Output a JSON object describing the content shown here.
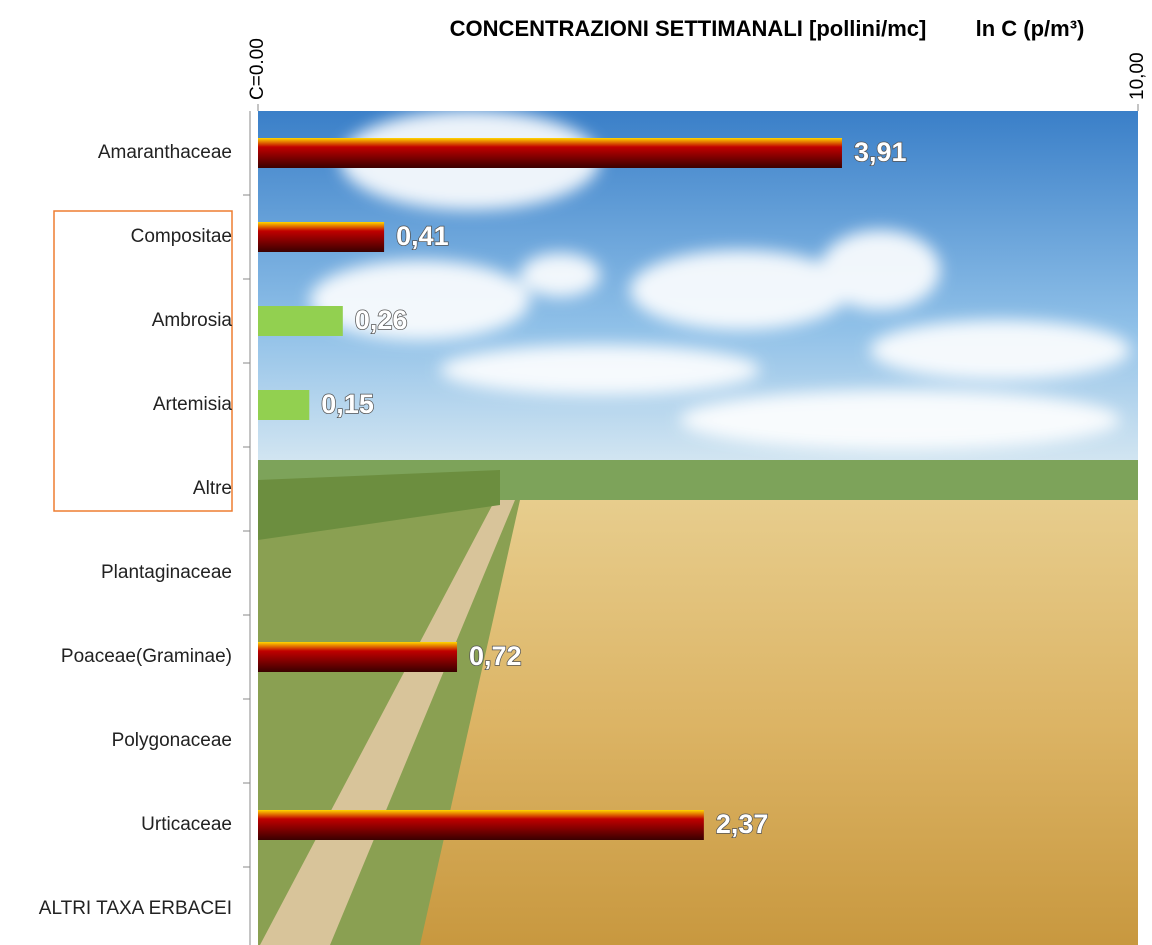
{
  "chart_data": {
    "type": "hbar",
    "title": "CONCENTRAZIONI SETTIMANALI  [pollini/mc]",
    "x_label": "ln C (p/m³)",
    "categories": [
      "Amaranthaceae",
      "Compositae",
      "Ambrosia",
      "Artemisia",
      "Altre",
      "Plantaginaceae",
      "Poaceae(Graminae)",
      "Polygonaceae",
      "Urticaceae",
      "ALTRI TAXA ERBACEI"
    ],
    "values": [
      3.91,
      0.41,
      0.26,
      0.15,
      null,
      null,
      0.72,
      null,
      2.37,
      null
    ],
    "value_labels": [
      "3,91",
      "0,41",
      "0,26",
      "0,15",
      null,
      null,
      "0,72",
      null,
      "2,37",
      null
    ],
    "colors": [
      "#c00000",
      "#c00000",
      "#92d050",
      "#92d050",
      null,
      null,
      "#c00000",
      null,
      "#c00000",
      null
    ],
    "xlim": [
      0,
      10
    ],
    "xticks": [
      {
        "value": 0,
        "label": "C=0.00"
      },
      {
        "value": 10,
        "label": "10,00"
      }
    ],
    "xscale": "log"
  }
}
